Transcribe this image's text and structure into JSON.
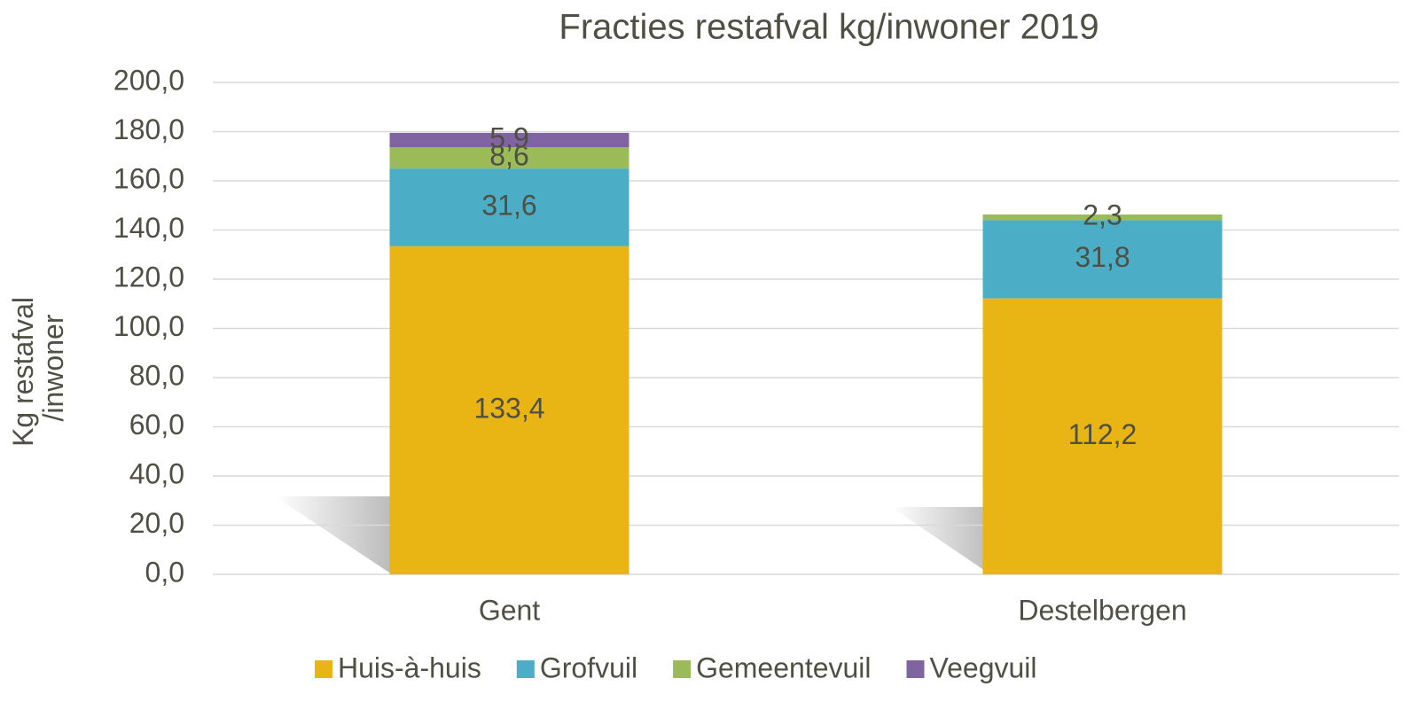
{
  "chart_data": {
    "type": "stacked_bar",
    "title": "Fracties restafval kg/inwoner 2019",
    "y_label": [
      "Kg restafval",
      "/inwoner"
    ],
    "categories": [
      "Gent",
      "Destelbergen"
    ],
    "series": [
      {
        "name": "Huis-à-huis",
        "color": "#e8b514",
        "values": [
          133.4,
          112.2
        ],
        "value_labels": [
          "133,4",
          "112,2"
        ]
      },
      {
        "name": "Grofvuil",
        "color": "#4badc6",
        "values": [
          31.6,
          31.8
        ],
        "value_labels": [
          "31,6",
          "31,8"
        ]
      },
      {
        "name": "Gemeentevuil",
        "color": "#9bbb59",
        "values": [
          8.6,
          2.3
        ],
        "value_labels": [
          "8,6",
          "2,3"
        ]
      },
      {
        "name": "Veegvuil",
        "color": "#8064a2",
        "values": [
          5.9,
          null
        ],
        "value_labels": [
          "5,9",
          null
        ]
      }
    ],
    "ylim": [
      0,
      200
    ],
    "yticks": [
      {
        "value": 0,
        "label": "0,0"
      },
      {
        "value": 20,
        "label": "20,0"
      },
      {
        "value": 40,
        "label": "40,0"
      },
      {
        "value": 60,
        "label": "60,0"
      },
      {
        "value": 80,
        "label": "80,0"
      },
      {
        "value": 100,
        "label": "100,0"
      },
      {
        "value": 120,
        "label": "120,0"
      },
      {
        "value": 140,
        "label": "140,0"
      },
      {
        "value": 160,
        "label": "160,0"
      },
      {
        "value": 180,
        "label": "180,0"
      },
      {
        "value": 200,
        "label": "200,0"
      }
    ],
    "grid": true,
    "legend": "bottom"
  }
}
